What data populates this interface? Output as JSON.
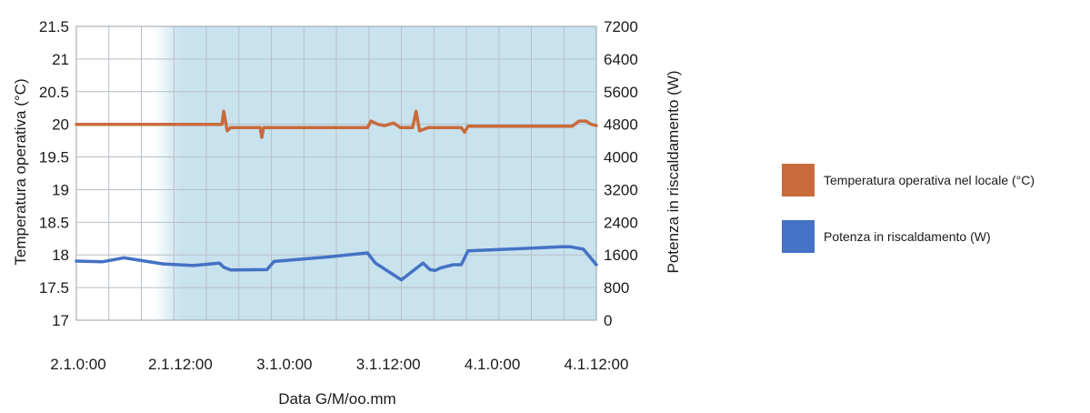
{
  "chart_data": {
    "type": "line",
    "xlabel": "Data G/M/oo.mm",
    "ylabel_left": "Temperatura operativa (°C)",
    "ylabel_right": "Potenza in riscaldamento (W)",
    "x_ticks": [
      "2.1.0:00",
      "2.1.12:00",
      "3.1.0:00",
      "3.1.12:00",
      "4.1.0:00",
      "4.1.12:00"
    ],
    "x_range_hours": [
      0,
      60
    ],
    "y_left_ticks": [
      "17",
      "17.5",
      "18",
      "18.5",
      "19",
      "19.5",
      "20",
      "20.5",
      "21",
      "21.5"
    ],
    "y_left_lim": [
      17,
      21.5
    ],
    "y_right_ticks": [
      "0",
      "800",
      "1600",
      "2400",
      "3200",
      "4000",
      "4800",
      "5600",
      "6400",
      "7200"
    ],
    "y_right_lim": [
      0,
      7200
    ],
    "grid": true,
    "legend_position": "right",
    "colors": {
      "temperature": "#c96a3c",
      "power": "#4472c4",
      "shade": "#c8e2ee"
    },
    "series": [
      {
        "name": "Temperatura operativa nel locale (°C)",
        "axis": "left",
        "x": [
          0,
          16.8,
          17.0,
          17.4,
          17.8,
          18.2,
          21.2,
          21.4,
          21.6,
          22.0,
          33.6,
          34.0,
          34.8,
          35.6,
          36.6,
          37.4,
          38.8,
          39.2,
          39.6,
          40.0,
          40.6,
          44.4,
          44.8,
          45.2,
          57.2,
          58.0,
          58.8,
          59.4,
          60.0
        ],
        "y": [
          20.0,
          20.0,
          20.2,
          19.9,
          19.95,
          19.95,
          19.95,
          19.8,
          19.95,
          19.95,
          19.95,
          20.05,
          20.0,
          19.98,
          20.02,
          19.95,
          19.95,
          20.2,
          19.9,
          19.92,
          19.95,
          19.95,
          19.88,
          19.97,
          19.97,
          20.05,
          20.05,
          20.0,
          19.98
        ]
      },
      {
        "name": "Potenza in riscaldamento (W)",
        "axis": "right",
        "x": [
          0,
          3.0,
          5.5,
          10.0,
          13.5,
          16.5,
          17.0,
          17.8,
          22.0,
          22.8,
          29.0,
          33.6,
          34.5,
          37.5,
          40.0,
          40.8,
          41.4,
          42.0,
          43.5,
          44.4,
          45.2,
          52.0,
          56.0,
          57.0,
          58.5,
          60.0
        ],
        "y": [
          1450,
          1430,
          1530,
          1380,
          1340,
          1400,
          1300,
          1230,
          1240,
          1440,
          1550,
          1650,
          1400,
          990,
          1400,
          1240,
          1220,
          1280,
          1360,
          1360,
          1700,
          1760,
          1800,
          1800,
          1740,
          1360
        ]
      }
    ]
  }
}
